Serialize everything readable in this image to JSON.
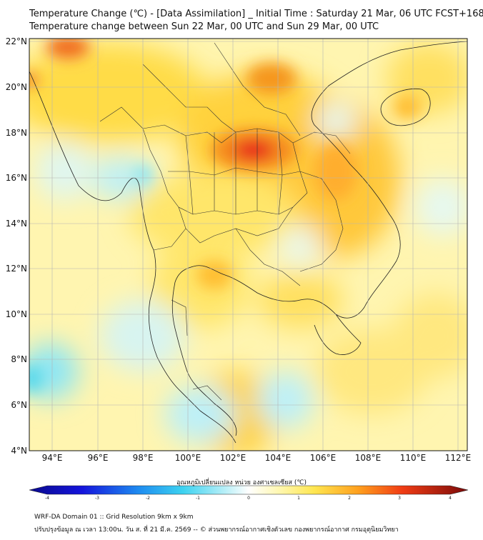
{
  "title": {
    "line1": "Temperature Change (℃) - [Data Assimilation] _ Initial Time : Saturday 21 Mar, 06 UTC FCST+168",
    "line2": "Temperature change between Sun 22 Mar, 00 UTC and Sun 29 Mar, 00 UTC"
  },
  "axes": {
    "lat_labels": [
      "22°N",
      "20°N",
      "18°N",
      "16°N",
      "14°N",
      "12°N",
      "10°N",
      "8°N",
      "6°N",
      "4°N"
    ],
    "lon_labels": [
      "94°E",
      "96°E",
      "98°E",
      "100°E",
      "102°E",
      "104°E",
      "106°E",
      "108°E",
      "110°E",
      "112°E"
    ]
  },
  "colorbar": {
    "title": "อุณหภูมิเปลี่ยนแปลง หน่วย องศาเซลเซียส (℃)",
    "ticks": [
      "-4",
      "-3",
      "-2",
      "-1",
      "0",
      "1",
      "2",
      "3",
      "4"
    ]
  },
  "footer": {
    "line1": "WRF-DA Domain 01 :: Grid Resolution 9km x 9km",
    "line2": "ปรับปรุงข้อมูล ณ เวลา 13:00น. วัน ส. ที่ 21 มี.ค. 2569 -- © ส่วนพยากรณ์อากาศเชิงตัวเลข กองพยากรณ์อากาศ กรมอุตุนิยมวิทยา"
  },
  "colors": {
    "warm_strong": "#e8201a",
    "warm_mid": "#f58c1e",
    "warm_light": "#ffd23c",
    "neutral": "#fff7b0",
    "cool_light": "#bdf0f8",
    "cool_mid": "#52d8ee"
  }
}
